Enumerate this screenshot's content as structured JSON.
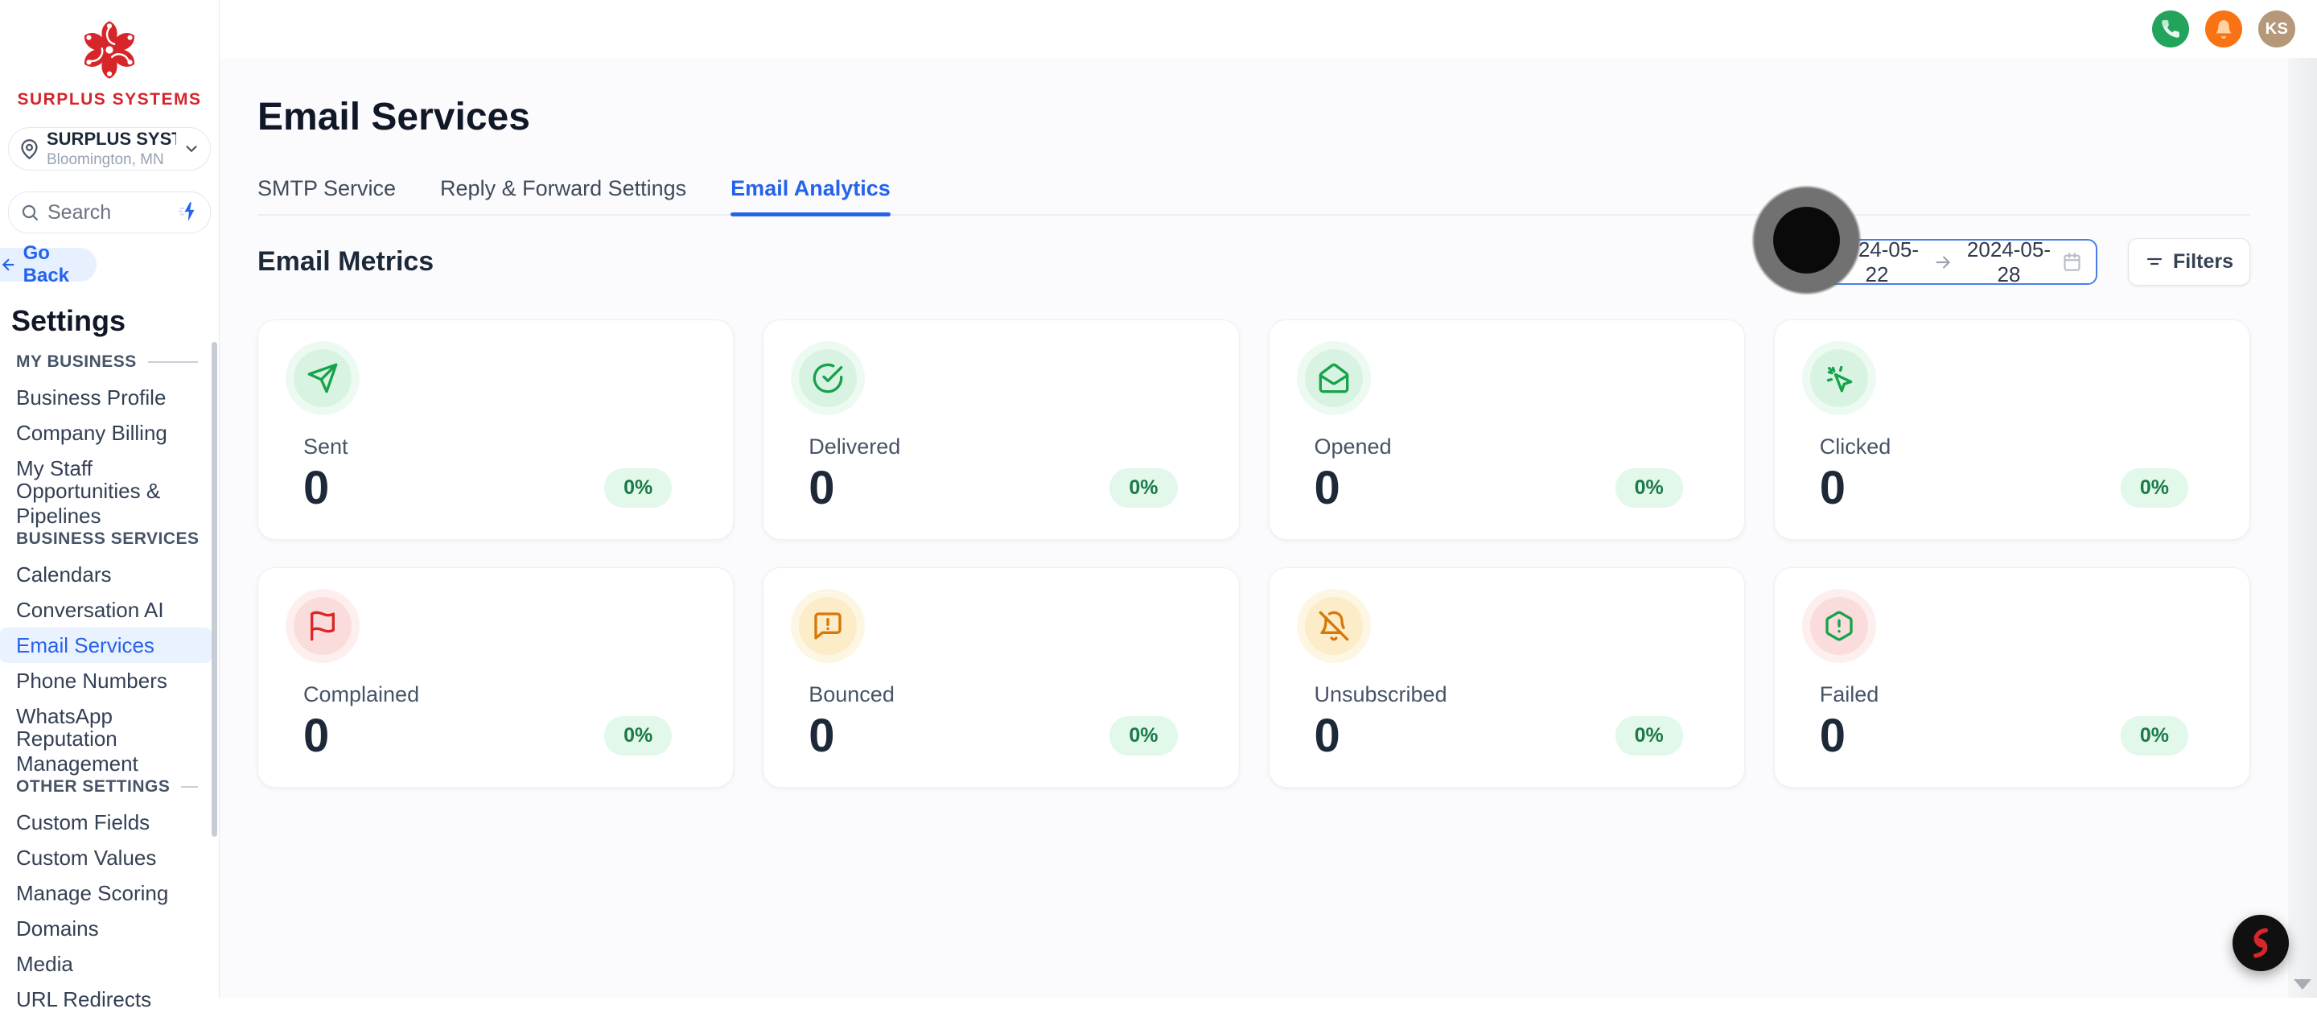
{
  "brand": {
    "name": "SURPLUS SYSTEMS"
  },
  "location_selector": {
    "name": "SURPLUS SYSTEM...",
    "city": "Bloomington, MN"
  },
  "sidebar": {
    "search_placeholder": "Search",
    "go_back_label": "Go Back",
    "title": "Settings",
    "sections": [
      {
        "label": "MY BUSINESS",
        "items": [
          "Business Profile",
          "Company Billing",
          "My Staff",
          "Opportunities & Pipelines"
        ]
      },
      {
        "label": "BUSINESS SERVICES",
        "items": [
          "Calendars",
          "Conversation AI",
          "Email Services",
          "Phone Numbers",
          "WhatsApp",
          "Reputation Management"
        ]
      },
      {
        "label": "OTHER SETTINGS",
        "items": [
          "Custom Fields",
          "Custom Values",
          "Manage Scoring",
          "Domains",
          "Media",
          "URL Redirects"
        ]
      }
    ],
    "active_item": "Email Services"
  },
  "header": {
    "avatar_initials": "KS"
  },
  "page": {
    "title": "Email Services",
    "tabs": [
      "SMTP Service",
      "Reply & Forward Settings",
      "Email Analytics"
    ],
    "active_tab": "Email Analytics",
    "section_title": "Email Metrics"
  },
  "date_range": {
    "start": "2024-05-22",
    "end": "2024-05-28"
  },
  "filters": {
    "label": "Filters"
  },
  "metrics": [
    {
      "label": "Sent",
      "value": "0",
      "percent": "0%",
      "icon": "send-icon",
      "tone": "green"
    },
    {
      "label": "Delivered",
      "value": "0",
      "percent": "0%",
      "icon": "check-circle-icon",
      "tone": "green"
    },
    {
      "label": "Opened",
      "value": "0",
      "percent": "0%",
      "icon": "mail-open-icon",
      "tone": "green"
    },
    {
      "label": "Clicked",
      "value": "0",
      "percent": "0%",
      "icon": "cursor-click-icon",
      "tone": "green"
    },
    {
      "label": "Complained",
      "value": "0",
      "percent": "0%",
      "icon": "flag-icon",
      "tone": "red"
    },
    {
      "label": "Bounced",
      "value": "0",
      "percent": "0%",
      "icon": "message-alert-icon",
      "tone": "amber"
    },
    {
      "label": "Unsubscribed",
      "value": "0",
      "percent": "0%",
      "icon": "bell-off-icon",
      "tone": "amber"
    },
    {
      "label": "Failed",
      "value": "0",
      "percent": "0%",
      "icon": "hexagon-alert-icon",
      "tone": "pinkgreen"
    }
  ],
  "colors": {
    "accent_blue": "#2563eb",
    "brand_red": "#d4252b",
    "badge_bg": "#e1f8ea",
    "badge_text": "#1b7a48",
    "tones": {
      "green": {
        "icon": "#16a34a",
        "inner": "#d9f3e3",
        "outer": "#edfaf2"
      },
      "red": {
        "icon": "#dc2626",
        "inner": "#fbdcdc",
        "outer": "#fdefee"
      },
      "amber": {
        "icon": "#d97706",
        "inner": "#fcecc8",
        "outer": "#fdf6e3"
      },
      "pinkgreen": {
        "icon": "#16a34a",
        "inner": "#fbdcdc",
        "outer": "#fdefee"
      }
    }
  }
}
